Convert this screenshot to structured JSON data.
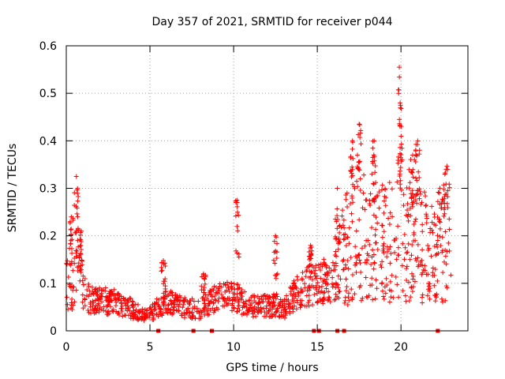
{
  "chart_data": {
    "type": "scatter",
    "title": "Day 357 of 2021, SRMTID for receiver p044",
    "xlabel": "GPS time / hours",
    "ylabel": "SRMTID / TECUs",
    "xlim": [
      0,
      24
    ],
    "ylim": [
      0,
      0.6
    ],
    "x_ticks": [
      0,
      5,
      10,
      15,
      20
    ],
    "x_tick_labels": [
      "0",
      "5",
      "10",
      "15",
      "20"
    ],
    "y_ticks": [
      0,
      0.1,
      0.2,
      0.3,
      0.4,
      0.5,
      0.6
    ],
    "y_tick_labels": [
      "0",
      "0.1",
      "0.2",
      "0.3",
      "0.4",
      "0.5",
      "0.6"
    ],
    "grid": true,
    "marker": "+",
    "color": "#ff0000",
    "gaps_marked_at_zero": [
      5.5,
      7.6,
      8.7,
      14.8,
      15.1,
      16.2,
      16.6,
      22.2
    ],
    "series": [
      {
        "name": "SRMTID",
        "profile_x": [
          0,
          0.3,
          0.6,
          1.0,
          1.5,
          2.0,
          3.0,
          4.0,
          4.8,
          5.3,
          6.0,
          7.0,
          8.0,
          9.0,
          10.0,
          10.5,
          11.5,
          12.5,
          13.0,
          13.5,
          14.0,
          15.0,
          16.0,
          16.5,
          17.0,
          18.0,
          19.0,
          20.0,
          21.0,
          22.0,
          22.5,
          23.0
        ],
        "profile_y": [
          0.15,
          0.12,
          0.14,
          0.08,
          0.065,
          0.065,
          0.06,
          0.045,
          0.03,
          0.045,
          0.06,
          0.05,
          0.045,
          0.07,
          0.075,
          0.06,
          0.05,
          0.055,
          0.045,
          0.07,
          0.09,
          0.1,
          0.11,
          0.15,
          0.2,
          0.2,
          0.18,
          0.2,
          0.2,
          0.15,
          0.2,
          0.22
        ],
        "spikes": [
          {
            "x": 0.3,
            "y": 0.24
          },
          {
            "x": 0.6,
            "y": 0.325
          },
          {
            "x": 0.9,
            "y": 0.21
          },
          {
            "x": 5.8,
            "y": 0.148
          },
          {
            "x": 8.2,
            "y": 0.12
          },
          {
            "x": 10.2,
            "y": 0.275
          },
          {
            "x": 12.5,
            "y": 0.2
          },
          {
            "x": 14.6,
            "y": 0.18
          },
          {
            "x": 16.2,
            "y": 0.3
          },
          {
            "x": 17.1,
            "y": 0.4
          },
          {
            "x": 17.5,
            "y": 0.435
          },
          {
            "x": 18.4,
            "y": 0.4
          },
          {
            "x": 19.9,
            "y": 0.555
          },
          {
            "x": 19.95,
            "y": 0.48
          },
          {
            "x": 20.7,
            "y": 0.37
          },
          {
            "x": 21.0,
            "y": 0.4
          },
          {
            "x": 22.7,
            "y": 0.34
          }
        ]
      }
    ]
  }
}
